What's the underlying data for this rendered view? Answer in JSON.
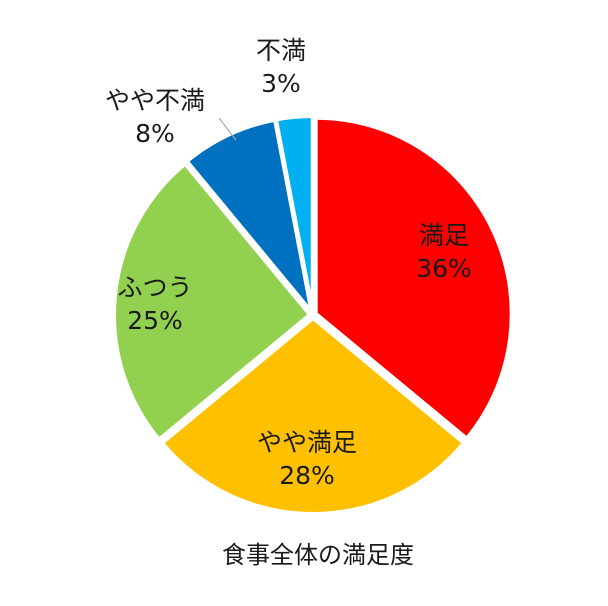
{
  "chart_data": {
    "type": "pie",
    "title": "食事全体の満足度",
    "start_angle_deg": 0,
    "direction": "clockwise",
    "label_unit": "%",
    "slices": [
      {
        "label": "満足",
        "value": 36,
        "color": "#ff0000"
      },
      {
        "label": "やや満足",
        "value": 28,
        "color": "#ffc000"
      },
      {
        "label": "ふつう",
        "value": 25,
        "color": "#92d050"
      },
      {
        "label": "やや不満",
        "value": 8,
        "color": "#0070c0"
      },
      {
        "label": "不満",
        "value": 3,
        "color": "#00b0f0"
      }
    ]
  }
}
